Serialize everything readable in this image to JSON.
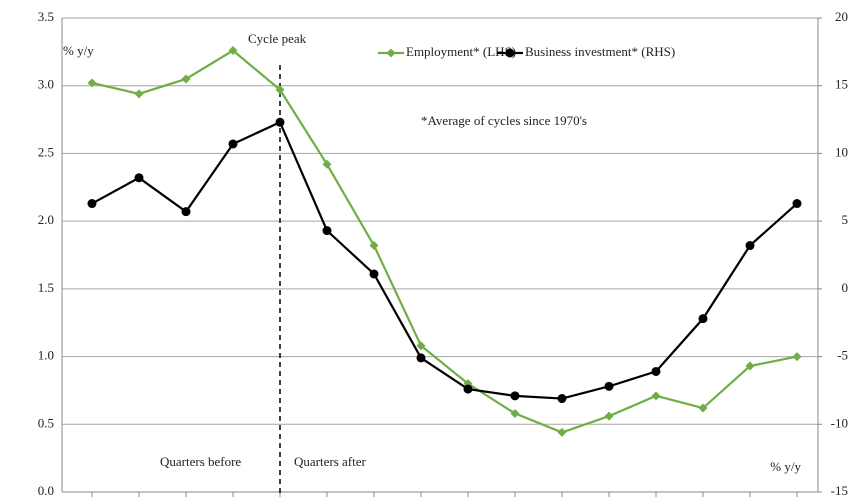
{
  "chart_data": {
    "type": "line",
    "categories": [
      null,
      null,
      null,
      null,
      null,
      null,
      null,
      null,
      null,
      null,
      null,
      null,
      null,
      null,
      null,
      null
    ],
    "series": [
      {
        "name": "Employment* (LHS)",
        "color": "#70ad47",
        "marker": "diamond",
        "axis": "y",
        "values": [
          3.02,
          2.94,
          3.05,
          3.26,
          2.97,
          2.42,
          1.82,
          1.08,
          0.8,
          0.58,
          0.44,
          0.56,
          0.71,
          0.62,
          0.93,
          1.0
        ]
      },
      {
        "name": "Business investment* (RHS)",
        "color": "#000000",
        "marker": "circle",
        "axis": "y2",
        "values": [
          6.3,
          8.2,
          5.7,
          10.7,
          12.3,
          4.3,
          1.1,
          -5.1,
          -7.4,
          -7.9,
          -8.1,
          -7.2,
          -6.1,
          -2.2,
          3.2,
          6.3
        ]
      }
    ],
    "ylim": [
      0,
      3.5
    ],
    "yticks": [
      {
        "value": 0,
        "label": "0.0"
      },
      0.5,
      {
        "value": 1,
        "label": "1.0"
      },
      1.5,
      {
        "value": 2,
        "label": "2.0"
      },
      2.5,
      {
        "value": 3,
        "label": "3.0"
      },
      3.5
    ],
    "y2lim": [
      -15,
      20
    ],
    "y2ticks": [
      -15,
      -10,
      -5,
      0,
      5,
      10,
      15,
      20
    ],
    "grid": true,
    "annotations": [
      "% y/y",
      "Cycle peak",
      "*Average of cycles since 1970's",
      "Quarters before",
      "Quarters after",
      "% y/y"
    ]
  }
}
